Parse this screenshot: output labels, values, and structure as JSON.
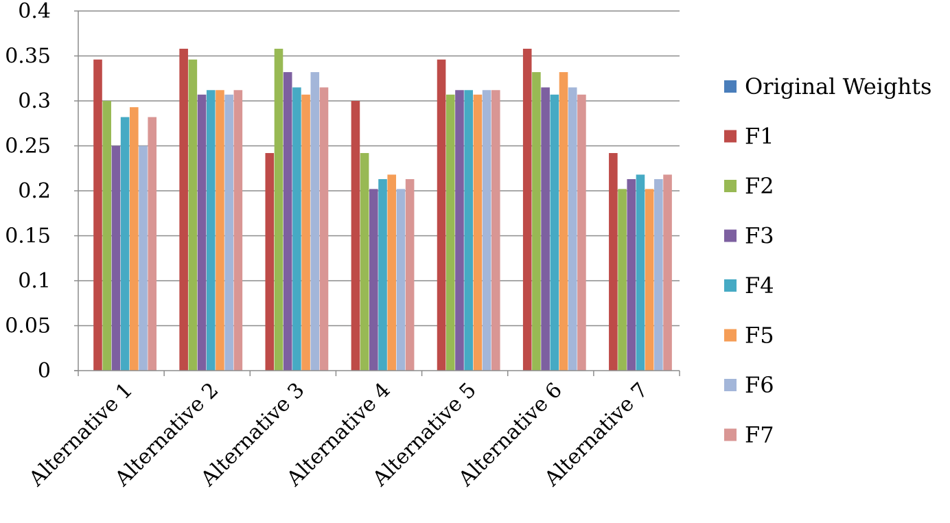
{
  "chart_data": {
    "type": "bar",
    "title": "",
    "xlabel": "",
    "ylabel": "",
    "ylim": [
      0,
      0.4
    ],
    "yticks": [
      0,
      0.05,
      0.1,
      0.15,
      0.2,
      0.25,
      0.3,
      0.35,
      0.4
    ],
    "ytick_labels": [
      "0",
      "0.05",
      "0.1",
      "0.15",
      "0.2",
      "0.25",
      "0.3",
      "0.35",
      "0.4"
    ],
    "grid": true,
    "legend_position": "right",
    "categories": [
      "Alternative 1",
      "Alternative 2",
      "Alternative 3",
      "Alternative 4",
      "Alternative 5",
      "Alternative 6",
      "Alternative 7"
    ],
    "series": [
      {
        "name": "Original Weights",
        "color": "#4a7ebb",
        "values": [
          0,
          0,
          0,
          0,
          0,
          0,
          0
        ]
      },
      {
        "name": "F1",
        "color": "#be4b48",
        "values": [
          0.346,
          0.358,
          0.242,
          0.3,
          0.346,
          0.358,
          0.242
        ]
      },
      {
        "name": "F2",
        "color": "#98b954",
        "values": [
          0.3,
          0.346,
          0.358,
          0.242,
          0.307,
          0.332,
          0.202
        ]
      },
      {
        "name": "F3",
        "color": "#7d60a0",
        "values": [
          0.25,
          0.307,
          0.332,
          0.202,
          0.312,
          0.315,
          0.213
        ]
      },
      {
        "name": "F4",
        "color": "#46aac4",
        "values": [
          0.282,
          0.312,
          0.315,
          0.213,
          0.312,
          0.307,
          0.218
        ]
      },
      {
        "name": "F5",
        "color": "#f59d56",
        "values": [
          0.293,
          0.312,
          0.307,
          0.218,
          0.307,
          0.332,
          0.202
        ]
      },
      {
        "name": "F6",
        "color": "#a3b6d9",
        "values": [
          0.25,
          0.307,
          0.332,
          0.202,
          0.312,
          0.315,
          0.213
        ]
      },
      {
        "name": "F7",
        "color": "#d99694",
        "values": [
          0.282,
          0.312,
          0.315,
          0.213,
          0.312,
          0.307,
          0.218
        ]
      }
    ]
  }
}
